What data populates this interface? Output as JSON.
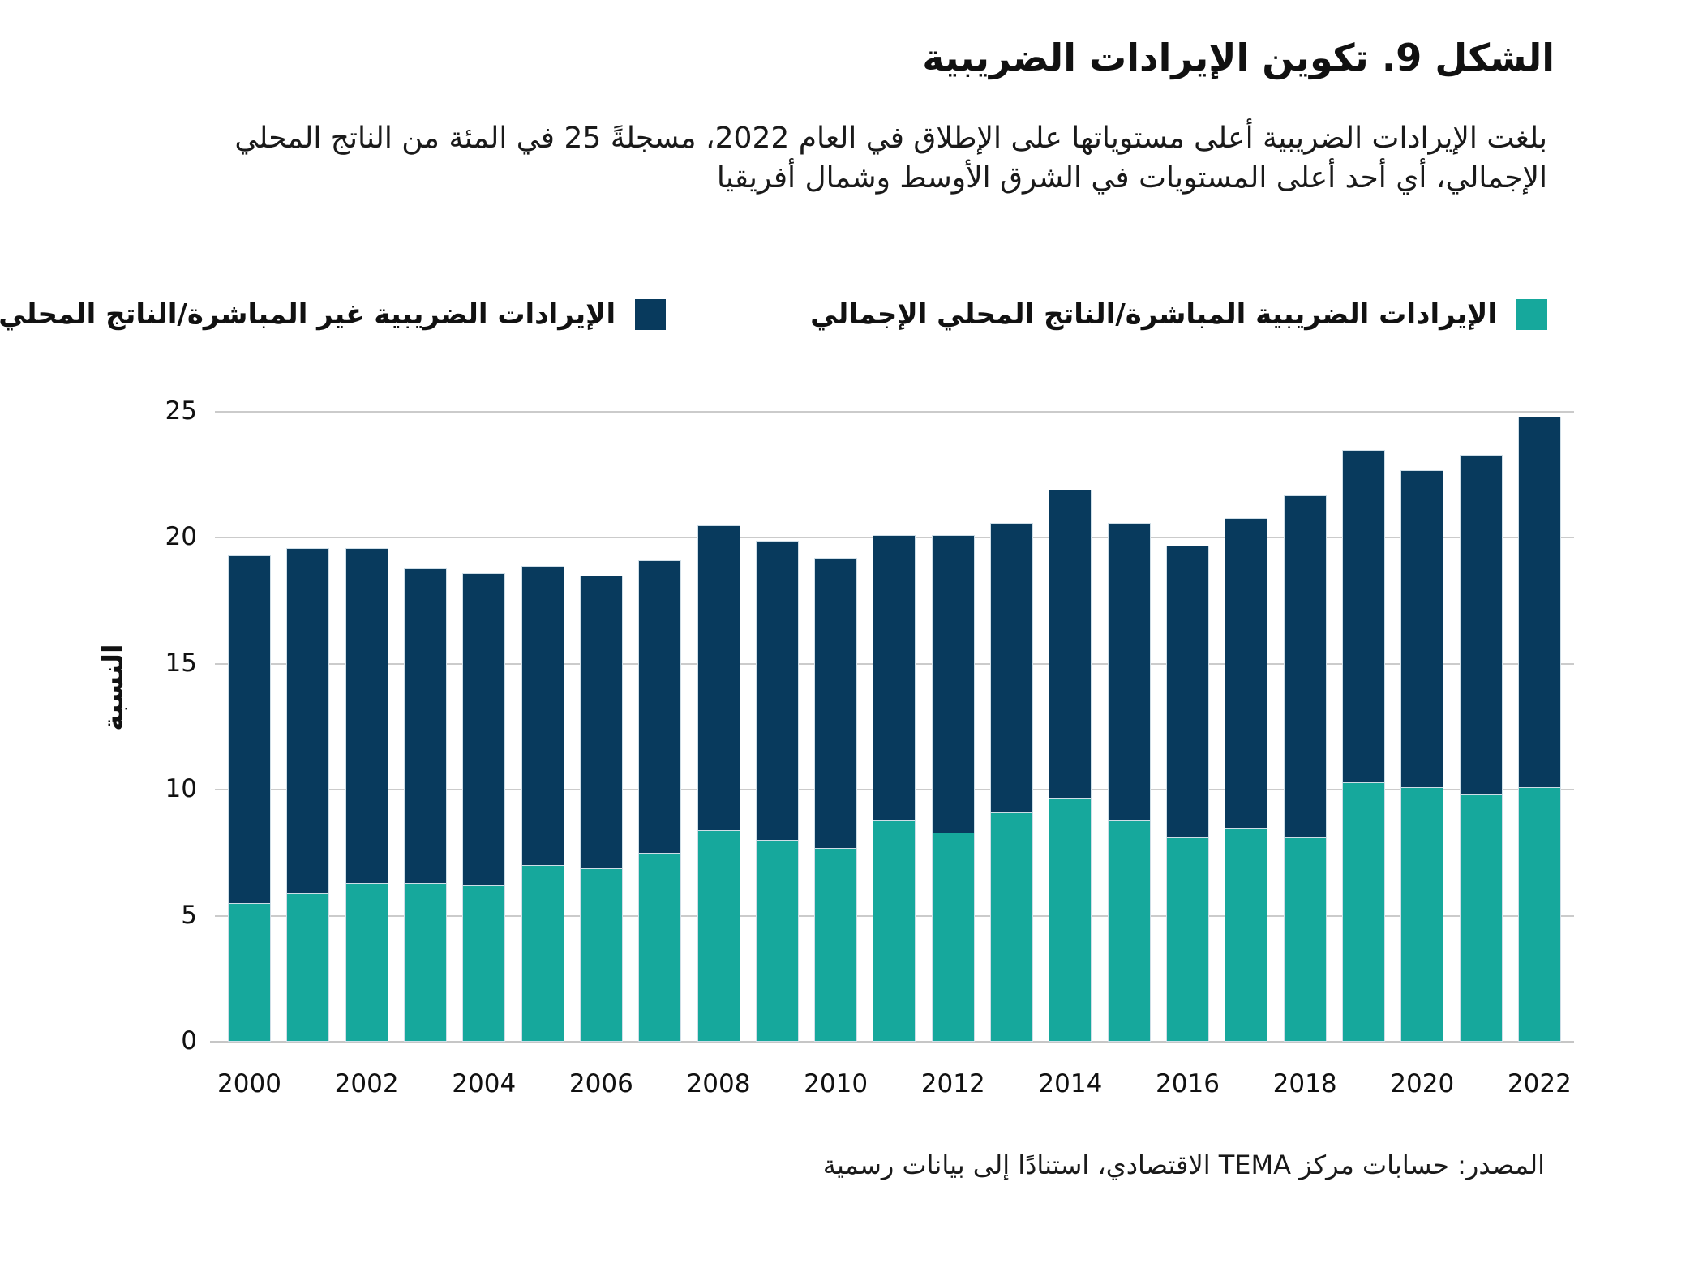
{
  "figure": {
    "title": "الشكل 9. تكوين الإيرادات الضريبية",
    "subtitle": "بلغت الإيرادات الضريبية أعلى مستوياتها على الإطلاق في العام 2022، مسجلةً 25 في المئة من الناتج المحلي الإجمالي، أي أحد أعلى المستويات في الشرق الأوسط وشمال أفريقيا",
    "source": "المصدر: حسابات مركز TEMA الاقتصادي، استنادًا إلى بيانات رسمية"
  },
  "colors": {
    "direct_teal": "#16A89C",
    "indirect_navy": "#083A5D",
    "gridline": "#cbcbcb",
    "bar_stroke": "#cfdee7"
  },
  "legend": {
    "entries": [
      {
        "label": "الإيرادات الضريبية المباشرة/الناتج المحلي الإجمالي",
        "color": "#16A89C"
      },
      {
        "label": "الإيرادات الضريبية غير المباشرة/الناتج المحلي الإجمالي",
        "color": "#083A5D"
      }
    ]
  },
  "chart_data": {
    "type": "bar",
    "stacked": true,
    "title": "الشكل 9. تكوين الإيرادات الضريبية",
    "ylabel": "النسبة",
    "xlabel": "",
    "ylim": [
      0,
      25
    ],
    "yticks": [
      0,
      5,
      10,
      15,
      20,
      25
    ],
    "xtick_labels": [
      "2000",
      "2002",
      "2004",
      "2006",
      "2008",
      "2010",
      "2012",
      "2014",
      "2016",
      "2018",
      "2020",
      "2022"
    ],
    "grid": true,
    "legend_position": "top",
    "x": [
      2000,
      2001,
      2002,
      2003,
      2004,
      2005,
      2006,
      2007,
      2008,
      2009,
      2010,
      2011,
      2012,
      2013,
      2014,
      2015,
      2016,
      2017,
      2018,
      2019,
      2020,
      2021,
      2022
    ],
    "series": [
      {
        "name": "الإيرادات الضريبية المباشرة/الناتج المحلي الإجمالي",
        "color": "#16A89C",
        "values": [
          5.5,
          5.9,
          6.3,
          6.3,
          6.2,
          7.0,
          6.9,
          7.5,
          8.4,
          8.0,
          7.7,
          8.8,
          8.3,
          9.1,
          9.7,
          8.8,
          8.1,
          8.5,
          8.1,
          10.3,
          10.1,
          9.8,
          10.1
        ]
      },
      {
        "name": "الإيرادات الضريبية غير المباشرة/الناتج المحلي الإجمالي",
        "color": "#083A5D",
        "values": [
          13.8,
          13.7,
          13.3,
          12.5,
          12.4,
          11.9,
          11.6,
          11.6,
          12.1,
          11.9,
          11.5,
          11.3,
          11.8,
          11.5,
          12.2,
          11.8,
          11.6,
          12.3,
          13.6,
          13.2,
          12.6,
          13.5,
          14.7
        ]
      }
    ],
    "totals": [
      19.3,
      19.6,
      19.6,
      18.8,
      18.6,
      18.9,
      18.5,
      19.1,
      20.5,
      19.9,
      19.2,
      20.1,
      20.1,
      20.6,
      21.9,
      20.6,
      19.7,
      20.8,
      21.7,
      23.5,
      22.7,
      23.3,
      24.8
    ]
  }
}
